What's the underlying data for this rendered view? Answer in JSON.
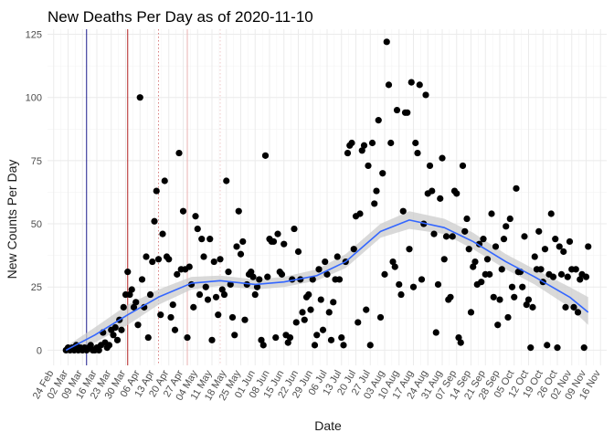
{
  "chart_data": {
    "type": "scatter",
    "title": "New Deaths Per Day as of 2020-11-10",
    "xlabel": "Date",
    "ylabel": "New Counts Per Day",
    "x_type": "date",
    "xlim": [
      "2020-02-21",
      "2020-11-19"
    ],
    "ylim": [
      -6,
      127
    ],
    "yticks": [
      0,
      25,
      50,
      75,
      100,
      125
    ],
    "xticks": [
      {
        "date": "2020-02-24",
        "label": "24 Feb"
      },
      {
        "date": "2020-03-02",
        "label": "02 Mar"
      },
      {
        "date": "2020-03-09",
        "label": "09 Mar"
      },
      {
        "date": "2020-03-16",
        "label": "16 Mar"
      },
      {
        "date": "2020-03-23",
        "label": "23 Mar"
      },
      {
        "date": "2020-03-30",
        "label": "30 Mar"
      },
      {
        "date": "2020-04-06",
        "label": "06 Apr"
      },
      {
        "date": "2020-04-13",
        "label": "13 Apr"
      },
      {
        "date": "2020-04-20",
        "label": "20 Apr"
      },
      {
        "date": "2020-04-27",
        "label": "27 Apr"
      },
      {
        "date": "2020-05-04",
        "label": "04 May"
      },
      {
        "date": "2020-05-11",
        "label": "11 May"
      },
      {
        "date": "2020-05-18",
        "label": "18 May"
      },
      {
        "date": "2020-05-25",
        "label": "25 May"
      },
      {
        "date": "2020-06-01",
        "label": "01 Jun"
      },
      {
        "date": "2020-06-08",
        "label": "08 Jun"
      },
      {
        "date": "2020-06-15",
        "label": "15 Jun"
      },
      {
        "date": "2020-06-22",
        "label": "22 Jun"
      },
      {
        "date": "2020-06-29",
        "label": "29 Jun"
      },
      {
        "date": "2020-07-06",
        "label": "06 Jul"
      },
      {
        "date": "2020-07-13",
        "label": "13 Jul"
      },
      {
        "date": "2020-07-20",
        "label": "20 Jul"
      },
      {
        "date": "2020-07-27",
        "label": "27 Jul"
      },
      {
        "date": "2020-08-03",
        "label": "03 Aug"
      },
      {
        "date": "2020-08-10",
        "label": "10 Aug"
      },
      {
        "date": "2020-08-17",
        "label": "17 Aug"
      },
      {
        "date": "2020-08-24",
        "label": "24 Aug"
      },
      {
        "date": "2020-08-31",
        "label": "31 Aug"
      },
      {
        "date": "2020-09-07",
        "label": "07 Sep"
      },
      {
        "date": "2020-09-14",
        "label": "14 Sep"
      },
      {
        "date": "2020-09-21",
        "label": "21 Sep"
      },
      {
        "date": "2020-09-28",
        "label": "28 Sep"
      },
      {
        "date": "2020-10-05",
        "label": "05 Oct"
      },
      {
        "date": "2020-10-12",
        "label": "12 Oct"
      },
      {
        "date": "2020-10-19",
        "label": "19 Oct"
      },
      {
        "date": "2020-10-26",
        "label": "26 Oct"
      },
      {
        "date": "2020-11-02",
        "label": "02 Nov"
      },
      {
        "date": "2020-11-09",
        "label": "09 Nov"
      },
      {
        "date": "2020-11-16",
        "label": "16 Nov"
      }
    ],
    "grid": true,
    "legend": "none",
    "vlines": [
      {
        "date": "2020-03-11",
        "color": "#1a1a8c",
        "style": "solid"
      },
      {
        "date": "2020-03-31",
        "color": "#b22222",
        "style": "solid"
      },
      {
        "date": "2020-04-15",
        "color": "#d98080",
        "style": "dotted"
      },
      {
        "date": "2020-04-29",
        "color": "#eab0b0",
        "style": "solid"
      },
      {
        "date": "2020-05-15",
        "color": "#f0c8c8",
        "style": "dotted"
      }
    ],
    "points": [
      [
        "2020-03-01",
        0
      ],
      [
        "2020-03-02",
        1
      ],
      [
        "2020-03-03",
        0
      ],
      [
        "2020-03-04",
        1
      ],
      [
        "2020-03-05",
        0
      ],
      [
        "2020-03-06",
        2
      ],
      [
        "2020-03-07",
        0
      ],
      [
        "2020-03-08",
        1
      ],
      [
        "2020-03-09",
        0
      ],
      [
        "2020-03-10",
        1
      ],
      [
        "2020-03-11",
        0
      ],
      [
        "2020-03-12",
        1
      ],
      [
        "2020-03-13",
        2
      ],
      [
        "2020-03-14",
        0
      ],
      [
        "2020-03-15",
        0
      ],
      [
        "2020-03-16",
        1
      ],
      [
        "2020-03-17",
        0
      ],
      [
        "2020-03-18",
        2
      ],
      [
        "2020-03-19",
        7
      ],
      [
        "2020-03-20",
        3
      ],
      [
        "2020-03-21",
        1
      ],
      [
        "2020-03-22",
        2
      ],
      [
        "2020-03-23",
        8
      ],
      [
        "2020-03-24",
        6
      ],
      [
        "2020-03-25",
        9
      ],
      [
        "2020-03-26",
        4
      ],
      [
        "2020-03-27",
        12
      ],
      [
        "2020-03-28",
        8
      ],
      [
        "2020-03-29",
        17
      ],
      [
        "2020-03-30",
        22
      ],
      [
        "2020-03-31",
        31
      ],
      [
        "2020-04-01",
        22
      ],
      [
        "2020-04-02",
        24
      ],
      [
        "2020-04-03",
        17
      ],
      [
        "2020-04-04",
        19
      ],
      [
        "2020-04-05",
        10
      ],
      [
        "2020-04-06",
        100
      ],
      [
        "2020-04-07",
        28
      ],
      [
        "2020-04-08",
        17
      ],
      [
        "2020-04-09",
        37
      ],
      [
        "2020-04-10",
        5
      ],
      [
        "2020-04-11",
        22
      ],
      [
        "2020-04-12",
        35
      ],
      [
        "2020-04-13",
        51
      ],
      [
        "2020-04-14",
        63
      ],
      [
        "2020-04-15",
        36
      ],
      [
        "2020-04-16",
        14
      ],
      [
        "2020-04-17",
        46
      ],
      [
        "2020-04-18",
        67
      ],
      [
        "2020-04-19",
        37
      ],
      [
        "2020-04-20",
        36
      ],
      [
        "2020-04-21",
        13
      ],
      [
        "2020-04-22",
        18
      ],
      [
        "2020-04-23",
        8
      ],
      [
        "2020-04-24",
        30
      ],
      [
        "2020-04-25",
        78
      ],
      [
        "2020-04-26",
        32
      ],
      [
        "2020-04-27",
        55
      ],
      [
        "2020-04-28",
        32
      ],
      [
        "2020-04-29",
        5
      ],
      [
        "2020-04-30",
        33
      ],
      [
        "2020-05-01",
        26
      ],
      [
        "2020-05-02",
        17
      ],
      [
        "2020-05-03",
        53
      ],
      [
        "2020-05-04",
        48
      ],
      [
        "2020-05-05",
        22
      ],
      [
        "2020-05-06",
        44
      ],
      [
        "2020-05-07",
        37
      ],
      [
        "2020-05-08",
        25
      ],
      [
        "2020-05-09",
        20
      ],
      [
        "2020-05-10",
        44
      ],
      [
        "2020-05-11",
        4
      ],
      [
        "2020-05-12",
        35
      ],
      [
        "2020-05-13",
        21
      ],
      [
        "2020-05-14",
        14
      ],
      [
        "2020-05-15",
        36
      ],
      [
        "2020-05-16",
        24
      ],
      [
        "2020-05-17",
        22
      ],
      [
        "2020-05-18",
        67
      ],
      [
        "2020-05-19",
        31
      ],
      [
        "2020-05-20",
        26
      ],
      [
        "2020-05-21",
        13
      ],
      [
        "2020-05-22",
        6
      ],
      [
        "2020-05-23",
        41
      ],
      [
        "2020-05-24",
        55
      ],
      [
        "2020-05-25",
        38
      ],
      [
        "2020-05-26",
        43
      ],
      [
        "2020-05-27",
        12
      ],
      [
        "2020-05-28",
        26
      ],
      [
        "2020-05-29",
        30
      ],
      [
        "2020-05-30",
        31
      ],
      [
        "2020-05-31",
        29
      ],
      [
        "2020-06-01",
        22
      ],
      [
        "2020-06-02",
        25
      ],
      [
        "2020-06-03",
        28
      ],
      [
        "2020-06-04",
        4
      ],
      [
        "2020-06-05",
        2
      ],
      [
        "2020-06-06",
        77
      ],
      [
        "2020-06-07",
        29
      ],
      [
        "2020-06-08",
        44
      ],
      [
        "2020-06-09",
        43
      ],
      [
        "2020-06-10",
        43
      ],
      [
        "2020-06-11",
        5
      ],
      [
        "2020-06-12",
        46
      ],
      [
        "2020-06-13",
        31
      ],
      [
        "2020-06-14",
        30
      ],
      [
        "2020-06-15",
        42
      ],
      [
        "2020-06-16",
        6
      ],
      [
        "2020-06-17",
        3
      ],
      [
        "2020-06-18",
        5
      ],
      [
        "2020-06-19",
        28
      ],
      [
        "2020-06-20",
        48
      ],
      [
        "2020-06-21",
        11
      ],
      [
        "2020-06-22",
        39
      ],
      [
        "2020-06-23",
        28
      ],
      [
        "2020-06-24",
        15
      ],
      [
        "2020-06-25",
        12
      ],
      [
        "2020-06-26",
        21
      ],
      [
        "2020-06-27",
        22
      ],
      [
        "2020-06-28",
        16
      ],
      [
        "2020-06-29",
        28
      ],
      [
        "2020-06-30",
        2
      ],
      [
        "2020-07-01",
        6
      ],
      [
        "2020-07-02",
        32
      ],
      [
        "2020-07-03",
        20
      ],
      [
        "2020-07-04",
        8
      ],
      [
        "2020-07-05",
        35
      ],
      [
        "2020-07-06",
        30
      ],
      [
        "2020-07-07",
        15
      ],
      [
        "2020-07-08",
        4
      ],
      [
        "2020-07-09",
        19
      ],
      [
        "2020-07-10",
        28
      ],
      [
        "2020-07-11",
        37
      ],
      [
        "2020-07-12",
        28
      ],
      [
        "2020-07-13",
        5
      ],
      [
        "2020-07-14",
        2
      ],
      [
        "2020-07-15",
        35
      ],
      [
        "2020-07-16",
        78
      ],
      [
        "2020-07-17",
        81
      ],
      [
        "2020-07-18",
        82
      ],
      [
        "2020-07-19",
        40
      ],
      [
        "2020-07-20",
        53
      ],
      [
        "2020-07-21",
        11
      ],
      [
        "2020-07-22",
        54
      ],
      [
        "2020-07-23",
        79
      ],
      [
        "2020-07-24",
        81
      ],
      [
        "2020-07-25",
        16
      ],
      [
        "2020-07-26",
        73
      ],
      [
        "2020-07-27",
        2
      ],
      [
        "2020-07-28",
        82
      ],
      [
        "2020-07-29",
        58
      ],
      [
        "2020-07-30",
        63
      ],
      [
        "2020-07-31",
        91
      ],
      [
        "2020-08-01",
        13
      ],
      [
        "2020-08-02",
        70
      ],
      [
        "2020-08-03",
        30
      ],
      [
        "2020-08-04",
        122
      ],
      [
        "2020-08-05",
        105
      ],
      [
        "2020-08-06",
        82
      ],
      [
        "2020-08-07",
        35
      ],
      [
        "2020-08-08",
        33
      ],
      [
        "2020-08-09",
        95
      ],
      [
        "2020-08-10",
        26
      ],
      [
        "2020-08-11",
        22
      ],
      [
        "2020-08-12",
        55
      ],
      [
        "2020-08-13",
        94
      ],
      [
        "2020-08-14",
        94
      ],
      [
        "2020-08-15",
        40
      ],
      [
        "2020-08-16",
        106
      ],
      [
        "2020-08-17",
        25
      ],
      [
        "2020-08-18",
        82
      ],
      [
        "2020-08-19",
        78
      ],
      [
        "2020-08-20",
        105
      ],
      [
        "2020-08-21",
        28
      ],
      [
        "2020-08-22",
        50
      ],
      [
        "2020-08-23",
        101
      ],
      [
        "2020-08-24",
        62
      ],
      [
        "2020-08-25",
        73
      ],
      [
        "2020-08-26",
        63
      ],
      [
        "2020-08-27",
        46
      ],
      [
        "2020-08-28",
        7
      ],
      [
        "2020-08-29",
        26
      ],
      [
        "2020-08-30",
        60
      ],
      [
        "2020-08-31",
        76
      ],
      [
        "2020-09-01",
        36
      ],
      [
        "2020-09-02",
        45
      ],
      [
        "2020-09-03",
        20
      ],
      [
        "2020-09-04",
        21
      ],
      [
        "2020-09-05",
        45
      ],
      [
        "2020-09-06",
        63
      ],
      [
        "2020-09-07",
        62
      ],
      [
        "2020-09-08",
        5
      ],
      [
        "2020-09-09",
        3
      ],
      [
        "2020-09-10",
        73
      ],
      [
        "2020-09-11",
        47
      ],
      [
        "2020-09-12",
        52
      ],
      [
        "2020-09-13",
        40
      ],
      [
        "2020-09-14",
        15
      ],
      [
        "2020-09-15",
        33
      ],
      [
        "2020-09-16",
        35
      ],
      [
        "2020-09-17",
        26
      ],
      [
        "2020-09-18",
        42
      ],
      [
        "2020-09-19",
        27
      ],
      [
        "2020-09-20",
        44
      ],
      [
        "2020-09-21",
        30
      ],
      [
        "2020-09-22",
        36
      ],
      [
        "2020-09-23",
        30
      ],
      [
        "2020-09-24",
        54
      ],
      [
        "2020-09-25",
        21
      ],
      [
        "2020-09-26",
        41
      ],
      [
        "2020-09-27",
        10
      ],
      [
        "2020-09-28",
        20
      ],
      [
        "2020-09-29",
        32
      ],
      [
        "2020-09-30",
        44
      ],
      [
        "2020-10-01",
        49
      ],
      [
        "2020-10-02",
        13
      ],
      [
        "2020-10-03",
        52
      ],
      [
        "2020-10-04",
        25
      ],
      [
        "2020-10-05",
        21
      ],
      [
        "2020-10-06",
        64
      ],
      [
        "2020-10-07",
        31
      ],
      [
        "2020-10-08",
        31
      ],
      [
        "2020-10-09",
        25
      ],
      [
        "2020-10-10",
        45
      ],
      [
        "2020-10-11",
        18
      ],
      [
        "2020-10-12",
        20
      ],
      [
        "2020-10-13",
        1
      ],
      [
        "2020-10-14",
        17
      ],
      [
        "2020-10-15",
        37
      ],
      [
        "2020-10-16",
        32
      ],
      [
        "2020-10-17",
        47
      ],
      [
        "2020-10-18",
        32
      ],
      [
        "2020-10-19",
        27
      ],
      [
        "2020-10-20",
        40
      ],
      [
        "2020-10-21",
        2
      ],
      [
        "2020-10-22",
        30
      ],
      [
        "2020-10-23",
        54
      ],
      [
        "2020-10-24",
        29
      ],
      [
        "2020-10-25",
        44
      ],
      [
        "2020-10-26",
        1
      ],
      [
        "2020-10-27",
        41
      ],
      [
        "2020-10-28",
        30
      ],
      [
        "2020-10-29",
        39
      ],
      [
        "2020-10-30",
        17
      ],
      [
        "2020-10-31",
        29
      ],
      [
        "2020-11-01",
        43
      ],
      [
        "2020-11-02",
        32
      ],
      [
        "2020-11-03",
        17
      ],
      [
        "2020-11-04",
        32
      ],
      [
        "2020-11-05",
        15
      ],
      [
        "2020-11-06",
        28
      ],
      [
        "2020-11-07",
        30
      ],
      [
        "2020-11-08",
        1
      ],
      [
        "2020-11-09",
        29
      ],
      [
        "2020-11-10",
        41
      ]
    ],
    "smooth": {
      "color": "#3366ff",
      "band_color": "#cccccc",
      "points": [
        [
          "2020-03-01",
          0,
          0,
          1.5
        ],
        [
          "2020-03-15",
          6,
          3,
          9
        ],
        [
          "2020-03-31",
          14,
          10,
          18
        ],
        [
          "2020-04-15",
          21,
          18,
          24
        ],
        [
          "2020-05-01",
          26.5,
          24,
          29
        ],
        [
          "2020-05-15",
          27.5,
          25.5,
          29.5
        ],
        [
          "2020-06-01",
          26,
          24,
          28
        ],
        [
          "2020-06-15",
          27,
          25,
          29
        ],
        [
          "2020-07-01",
          29.5,
          27.5,
          32
        ],
        [
          "2020-07-15",
          35,
          32.5,
          38
        ],
        [
          "2020-08-01",
          47,
          44.5,
          50
        ],
        [
          "2020-08-15",
          51.5,
          48,
          55
        ],
        [
          "2020-09-01",
          48.5,
          46,
          52
        ],
        [
          "2020-09-15",
          43,
          40,
          46.5
        ],
        [
          "2020-10-01",
          35,
          32,
          38
        ],
        [
          "2020-10-15",
          29,
          26,
          32
        ],
        [
          "2020-11-01",
          21,
          17,
          25
        ],
        [
          "2020-11-10",
          15,
          10,
          21
        ]
      ]
    }
  }
}
